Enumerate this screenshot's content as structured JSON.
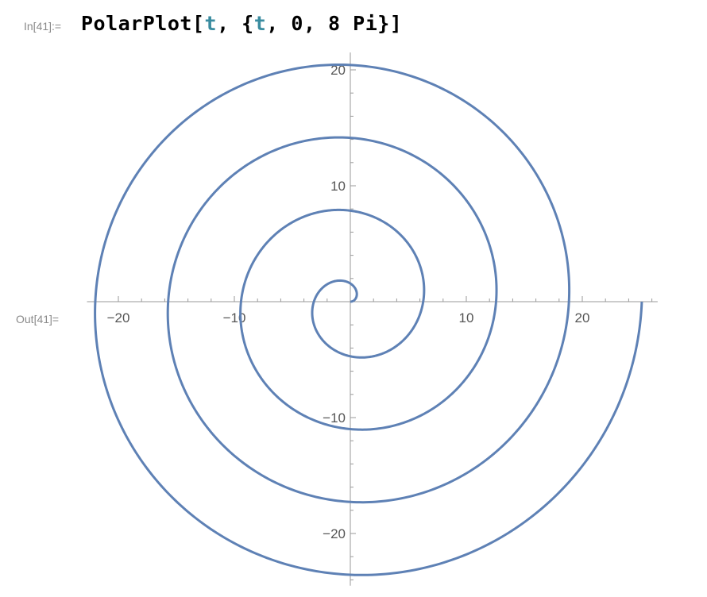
{
  "cell": {
    "in_label": "In[41]:=",
    "out_label": "Out[41]=",
    "code": {
      "fn": "PolarPlot[",
      "var1": "t",
      "mid": ", {",
      "var2": "t",
      "tail": ", 0, 8 Pi}]"
    }
  },
  "chart_data": {
    "type": "line",
    "subtype": "polar",
    "function": "r = t",
    "t_range": [
      0,
      25.1327
    ],
    "xlim": [
      -22.5,
      26.5
    ],
    "ylim": [
      -24.5,
      21.5
    ],
    "x_ticks": [
      -20,
      -10,
      10,
      20
    ],
    "y_ticks": [
      -20,
      -10,
      10,
      20
    ],
    "x_tick_labels": [
      "−20",
      "−10",
      "10",
      "20"
    ],
    "y_tick_labels": [
      "−20",
      "−10",
      "10",
      "20"
    ],
    "grid": false,
    "line_color": "#5e81b5",
    "axis_color": "#999999"
  }
}
